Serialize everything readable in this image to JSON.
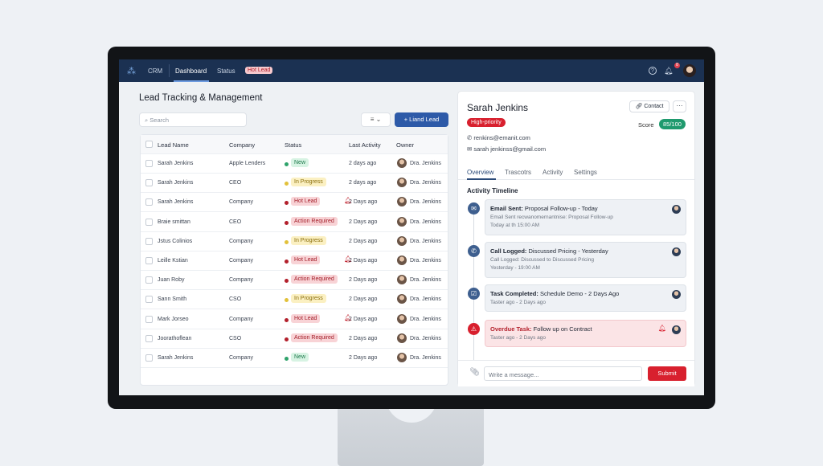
{
  "nav": {
    "brand": "CRM",
    "items": [
      "Dashboard",
      "Status"
    ],
    "badge": "Hot Lead",
    "notif_count": "8"
  },
  "left": {
    "title": "Lead Tracking & Management",
    "search_placeholder": "Search",
    "add_label": "+ Liand Lead",
    "columns": [
      "Lead Name",
      "Company",
      "Status",
      "Last Activity",
      "Owner"
    ],
    "rows": [
      {
        "name": "Sarah Jenkins",
        "company": "Apple Lenders",
        "status": "New",
        "activity": "2 days ago",
        "owner": "Dra. Jenkins",
        "alert": false
      },
      {
        "name": "Sarah Jenkins",
        "company": "CEO",
        "status": "In Progress",
        "activity": "2 days ago",
        "owner": "Dra. Jenkins",
        "alert": false
      },
      {
        "name": "Sarah Jenkins",
        "company": "Company",
        "status": "Hot Lead",
        "activity": "2 Days ago",
        "owner": "Dra. Jenkins",
        "alert": true
      },
      {
        "name": "Braie smittan",
        "company": "CEO",
        "status": "Action Required",
        "activity": "2 Days ago",
        "owner": "Dra. Jenkins",
        "alert": false
      },
      {
        "name": "Jstus Colinios",
        "company": "Company",
        "status": "In Progress",
        "activity": "2 Days ago",
        "owner": "Dra. Jenkins",
        "alert": false
      },
      {
        "name": "Leille Kstian",
        "company": "Company",
        "status": "Hot Lead",
        "activity": "2 Days ago",
        "owner": "Dra. Jenkins",
        "alert": true
      },
      {
        "name": "Juan Roby",
        "company": "Company",
        "status": "Action Required",
        "activity": "2 Days ago",
        "owner": "Dra. Jenkins",
        "alert": false
      },
      {
        "name": "Sann Smith",
        "company": "CSO",
        "status": "In Progress",
        "activity": "2 Days ago",
        "owner": "Dra. Jenkins",
        "alert": false
      },
      {
        "name": "Mark Jorseo",
        "company": "Company",
        "status": "Hot Lead",
        "activity": "2 Days ago",
        "owner": "Dra. Jenkins",
        "alert": true
      },
      {
        "name": "Joorathoflean",
        "company": "CSO",
        "status": "Action Required",
        "activity": "2 Days ago",
        "owner": "Dra. Jenkins",
        "alert": false
      },
      {
        "name": "Sarah Jenkins",
        "company": "Company",
        "status": "New",
        "activity": "2 Days ago",
        "owner": "Dra. Jenkins",
        "alert": false
      }
    ]
  },
  "status_colors": {
    "New": [
      "#2fa36b",
      "#d7f3e3",
      "#1f7a4d"
    ],
    "In Progress": [
      "#e2c13a",
      "#fbf0c2",
      "#8a6d0b"
    ],
    "Hot Lead": [
      "#b3202c",
      "#f8d3d6",
      "#a31d28"
    ],
    "Action Required": [
      "#b3202c",
      "#f8d3d6",
      "#a31d28"
    ]
  },
  "detail": {
    "name": "Sarah Jenkins",
    "contact_label": "Contact",
    "more": "···",
    "priority": "High-priority",
    "score_label": "Score",
    "score": "85/100",
    "phone": "renkins@emanit.com",
    "email": "sarah jenkinss@gmail.com",
    "tabs": [
      "Overview",
      "Trascotrs",
      "Activity",
      "Settings"
    ],
    "timeline_title": "Activity Timeline",
    "timeline": [
      {
        "icon": "email",
        "bold": "Email Sent:",
        "title": " Proposal Follow-up - Today",
        "sub": "Email Sent recwanomernantnise: Proposal Follow-up",
        "time": "Today at th 15:00 AM"
      },
      {
        "icon": "phone",
        "bold": "Call Logged:",
        "title": " Discussed Pricing - Yesterday",
        "sub": "Call Logged: Discussed to Discussed Pricing",
        "time": "Yesterday - 19:00 AM"
      },
      {
        "icon": "check",
        "bold": "Task Completed:",
        "title": " Schedule Demo - 2 Days Ago",
        "sub": "",
        "time": "Taster ago - 2 Days ago"
      },
      {
        "icon": "warning",
        "bold": "Overdue Task:",
        "title": " Follow up on Contract",
        "sub": "",
        "time": "Taster ago - 2 Days ago"
      }
    ],
    "message_placeholder": "Write a message...",
    "submit": "Submit"
  }
}
